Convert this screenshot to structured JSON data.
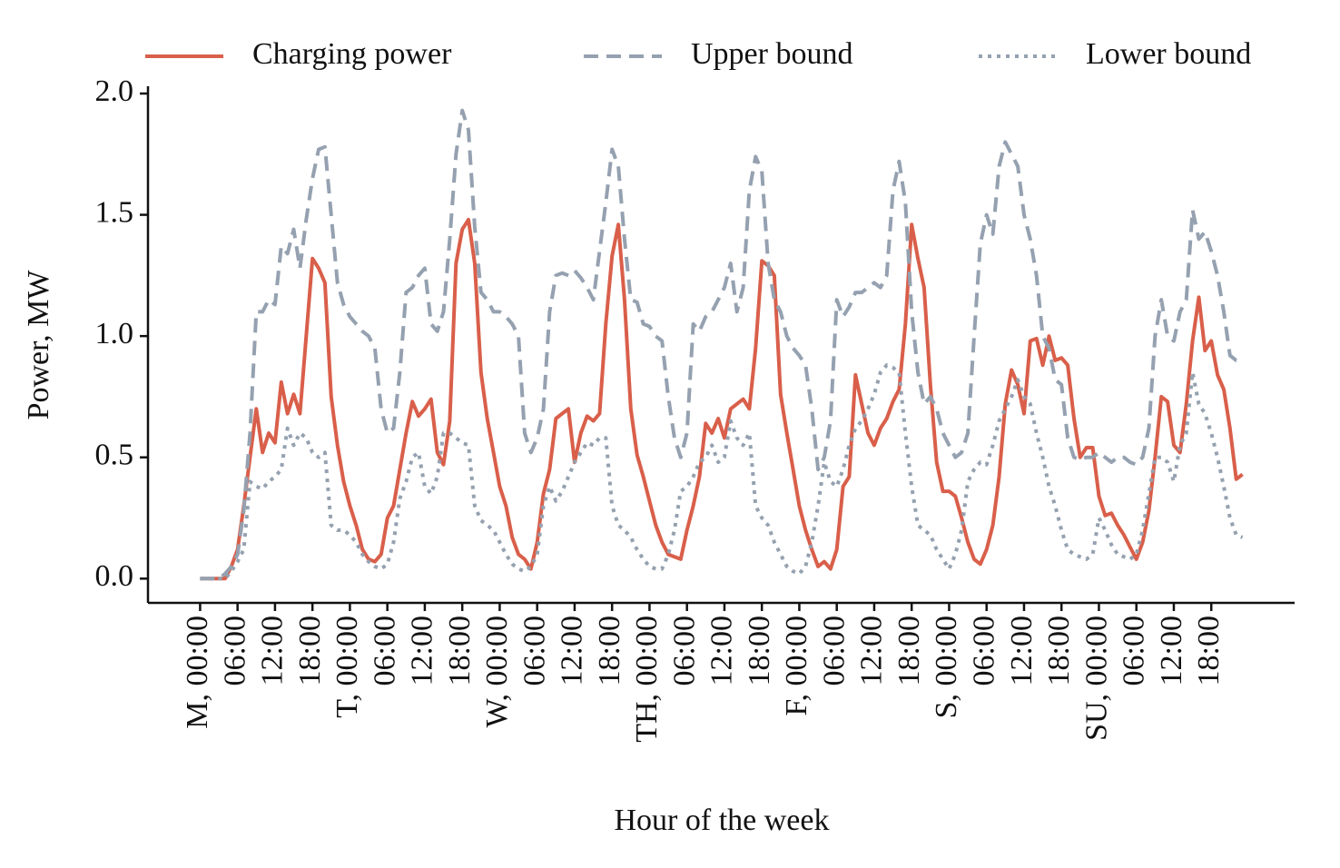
{
  "chart_data": {
    "type": "line",
    "xlabel": "Hour of the week",
    "ylabel": "Power, MW",
    "x": [
      0,
      1,
      2,
      3,
      4,
      5,
      6,
      7,
      8,
      9,
      10,
      11,
      12,
      13,
      14,
      15,
      16,
      17,
      18,
      19,
      20,
      21,
      22,
      23,
      24,
      25,
      26,
      27,
      28,
      29,
      30,
      31,
      32,
      33,
      34,
      35,
      36,
      37,
      38,
      39,
      40,
      41,
      42,
      43,
      44,
      45,
      46,
      47,
      48,
      49,
      50,
      51,
      52,
      53,
      54,
      55,
      56,
      57,
      58,
      59,
      60,
      61,
      62,
      63,
      64,
      65,
      66,
      67,
      68,
      69,
      70,
      71,
      72,
      73,
      74,
      75,
      76,
      77,
      78,
      79,
      80,
      81,
      82,
      83,
      84,
      85,
      86,
      87,
      88,
      89,
      90,
      91,
      92,
      93,
      94,
      95,
      96,
      97,
      98,
      99,
      100,
      101,
      102,
      103,
      104,
      105,
      106,
      107,
      108,
      109,
      110,
      111,
      112,
      113,
      114,
      115,
      116,
      117,
      118,
      119,
      120,
      121,
      122,
      123,
      124,
      125,
      126,
      127,
      128,
      129,
      130,
      131,
      132,
      133,
      134,
      135,
      136,
      137,
      138,
      139,
      140,
      141,
      142,
      143,
      144,
      145,
      146,
      147,
      148,
      149,
      150,
      151,
      152,
      153,
      154,
      155,
      156,
      157,
      158,
      159,
      160,
      161,
      162,
      163,
      164,
      165,
      166,
      167
    ],
    "series": [
      {
        "name": "Charging power",
        "color": "#d95f4a",
        "linestyle": "solid",
        "values": [
          0,
          0,
          0,
          0,
          0,
          0.05,
          0.12,
          0.3,
          0.5,
          0.7,
          0.52,
          0.6,
          0.56,
          0.81,
          0.68,
          0.76,
          0.68,
          1.0,
          1.32,
          1.28,
          1.22,
          0.75,
          0.55,
          0.4,
          0.3,
          0.22,
          0.12,
          0.08,
          0.07,
          0.1,
          0.25,
          0.3,
          0.45,
          0.6,
          0.73,
          0.67,
          0.7,
          0.74,
          0.52,
          0.47,
          0.65,
          1.3,
          1.44,
          1.48,
          1.3,
          0.85,
          0.66,
          0.52,
          0.38,
          0.3,
          0.17,
          0.1,
          0.08,
          0.04,
          0.15,
          0.35,
          0.45,
          0.66,
          0.68,
          0.7,
          0.48,
          0.6,
          0.67,
          0.65,
          0.68,
          1.05,
          1.33,
          1.46,
          1.15,
          0.7,
          0.51,
          0.42,
          0.32,
          0.22,
          0.15,
          0.1,
          0.09,
          0.08,
          0.2,
          0.3,
          0.42,
          0.64,
          0.6,
          0.66,
          0.58,
          0.7,
          0.72,
          0.74,
          0.7,
          0.95,
          1.31,
          1.29,
          1.25,
          0.76,
          0.6,
          0.45,
          0.3,
          0.2,
          0.12,
          0.05,
          0.07,
          0.04,
          0.12,
          0.38,
          0.42,
          0.84,
          0.72,
          0.6,
          0.55,
          0.62,
          0.66,
          0.73,
          0.78,
          1.05,
          1.46,
          1.32,
          1.2,
          0.8,
          0.48,
          0.36,
          0.36,
          0.34,
          0.25,
          0.15,
          0.08,
          0.06,
          0.12,
          0.22,
          0.42,
          0.72,
          0.86,
          0.8,
          0.68,
          0.98,
          0.99,
          0.88,
          1.0,
          0.9,
          0.91,
          0.88,
          0.66,
          0.5,
          0.54,
          0.54,
          0.34,
          0.26,
          0.27,
          0.22,
          0.18,
          0.13,
          0.08,
          0.15,
          0.28,
          0.5,
          0.75,
          0.73,
          0.55,
          0.52,
          0.72,
          0.98,
          1.16,
          0.94,
          0.98,
          0.84,
          0.78,
          0.62,
          0.41,
          0.43
        ]
      },
      {
        "name": "Upper bound",
        "color": "#95a1b0",
        "linestyle": "dashed",
        "values": [
          0,
          0,
          0,
          0,
          0.02,
          0.05,
          0.1,
          0.28,
          0.6,
          1.1,
          1.1,
          1.15,
          1.13,
          1.37,
          1.34,
          1.44,
          1.28,
          1.48,
          1.65,
          1.77,
          1.78,
          1.5,
          1.22,
          1.13,
          1.08,
          1.05,
          1.02,
          1.0,
          0.95,
          0.7,
          0.6,
          0.62,
          0.85,
          1.18,
          1.2,
          1.25,
          1.28,
          1.05,
          1.02,
          1.1,
          1.4,
          1.75,
          1.93,
          1.85,
          1.45,
          1.18,
          1.15,
          1.1,
          1.1,
          1.08,
          1.05,
          1.0,
          0.6,
          0.52,
          0.58,
          0.7,
          1.1,
          1.25,
          1.26,
          1.25,
          1.27,
          1.24,
          1.2,
          1.15,
          1.35,
          1.55,
          1.77,
          1.7,
          1.4,
          1.15,
          1.14,
          1.05,
          1.04,
          1.0,
          0.98,
          0.75,
          0.58,
          0.5,
          0.6,
          1.05,
          1.02,
          1.08,
          1.1,
          1.15,
          1.2,
          1.3,
          1.1,
          1.2,
          1.6,
          1.74,
          1.68,
          1.3,
          1.15,
          1.1,
          1.0,
          0.95,
          0.92,
          0.88,
          0.7,
          0.45,
          0.5,
          0.65,
          1.15,
          1.08,
          1.12,
          1.18,
          1.18,
          1.2,
          1.22,
          1.2,
          1.25,
          1.6,
          1.72,
          1.55,
          1.1,
          0.85,
          0.72,
          0.75,
          0.7,
          0.6,
          0.55,
          0.5,
          0.52,
          0.6,
          1.0,
          1.38,
          1.5,
          1.42,
          1.7,
          1.8,
          1.75,
          1.7,
          1.5,
          1.4,
          1.25,
          1.0,
          0.95,
          0.82,
          0.8,
          0.58,
          0.5,
          0.49,
          0.5,
          0.5,
          0.52,
          0.5,
          0.48,
          0.5,
          0.5,
          0.48,
          0.47,
          0.5,
          0.62,
          1.0,
          1.15,
          1.0,
          0.98,
          1.1,
          1.15,
          1.52,
          1.4,
          1.43,
          1.35,
          1.25,
          1.1,
          0.92,
          0.9,
          0.9
        ]
      },
      {
        "name": "Lower bound",
        "color": "#95a1b0",
        "linestyle": "dotted",
        "values": [
          0,
          0,
          0,
          0,
          0,
          0.03,
          0.07,
          0.12,
          0.4,
          0.38,
          0.37,
          0.4,
          0.42,
          0.45,
          0.62,
          0.55,
          0.6,
          0.58,
          0.52,
          0.5,
          0.52,
          0.22,
          0.2,
          0.2,
          0.18,
          0.15,
          0.1,
          0.07,
          0.05,
          0.04,
          0.06,
          0.15,
          0.33,
          0.4,
          0.5,
          0.52,
          0.38,
          0.35,
          0.42,
          0.6,
          0.6,
          0.58,
          0.56,
          0.55,
          0.3,
          0.24,
          0.22,
          0.2,
          0.15,
          0.1,
          0.06,
          0.04,
          0.03,
          0.05,
          0.1,
          0.3,
          0.38,
          0.32,
          0.36,
          0.42,
          0.48,
          0.52,
          0.56,
          0.55,
          0.58,
          0.58,
          0.3,
          0.22,
          0.2,
          0.17,
          0.12,
          0.08,
          0.05,
          0.04,
          0.04,
          0.1,
          0.2,
          0.36,
          0.38,
          0.42,
          0.48,
          0.5,
          0.55,
          0.48,
          0.5,
          0.65,
          0.58,
          0.55,
          0.6,
          0.3,
          0.25,
          0.22,
          0.15,
          0.1,
          0.05,
          0.03,
          0.02,
          0.05,
          0.15,
          0.3,
          0.48,
          0.4,
          0.38,
          0.45,
          0.55,
          0.62,
          0.65,
          0.7,
          0.76,
          0.85,
          0.88,
          0.87,
          0.85,
          0.6,
          0.38,
          0.22,
          0.2,
          0.18,
          0.12,
          0.08,
          0.04,
          0.1,
          0.2,
          0.4,
          0.45,
          0.48,
          0.47,
          0.55,
          0.65,
          0.7,
          0.75,
          0.82,
          0.75,
          0.72,
          0.6,
          0.5,
          0.38,
          0.3,
          0.2,
          0.12,
          0.1,
          0.09,
          0.08,
          0.1,
          0.25,
          0.2,
          0.14,
          0.1,
          0.09,
          0.08,
          0.1,
          0.2,
          0.35,
          0.5,
          0.5,
          0.48,
          0.4,
          0.55,
          0.6,
          0.85,
          0.72,
          0.68,
          0.6,
          0.5,
          0.38,
          0.25,
          0.18,
          0.17
        ]
      }
    ],
    "xlim": [
      -8.35,
      175.35
    ],
    "ylim": [
      -0.1,
      2.03
    ],
    "xticks": [
      {
        "value": 0,
        "label": "M, 00:00"
      },
      6,
      12,
      18,
      {
        "value": 24,
        "label": "T, 00:00"
      },
      30,
      36,
      42,
      {
        "value": 48,
        "label": "W, 00:00"
      },
      54,
      60,
      66,
      {
        "value": 72,
        "label": "TH, 00:00"
      },
      78,
      84,
      90,
      {
        "value": 96,
        "label": "F, 00:00"
      },
      102,
      108,
      114,
      {
        "value": 120,
        "label": "S, 00:00"
      },
      126,
      132,
      138,
      {
        "value": 144,
        "label": "SU, 00:00"
      },
      150,
      156,
      162
    ],
    "xtick_labels": [
      null,
      "06:00",
      "12:00",
      "18:00",
      null,
      "06:00",
      "12:00",
      "18:00",
      null,
      "06:00",
      "12:00",
      "18:00",
      null,
      "06:00",
      "12:00",
      "18:00",
      null,
      "06:00",
      "12:00",
      "18:00",
      null,
      "06:00",
      "12:00",
      "18:00",
      null,
      "06:00",
      "12:00",
      "18:00"
    ],
    "yticks": [
      {
        "value": 0,
        "label": "0.0"
      },
      {
        "value": 0.5,
        "label": "0.5"
      },
      {
        "value": 1,
        "label": "1.0"
      },
      {
        "value": 1.5,
        "label": "1.5"
      },
      {
        "value": 2,
        "label": "2.0"
      }
    ],
    "legend": "top",
    "grid": false
  }
}
